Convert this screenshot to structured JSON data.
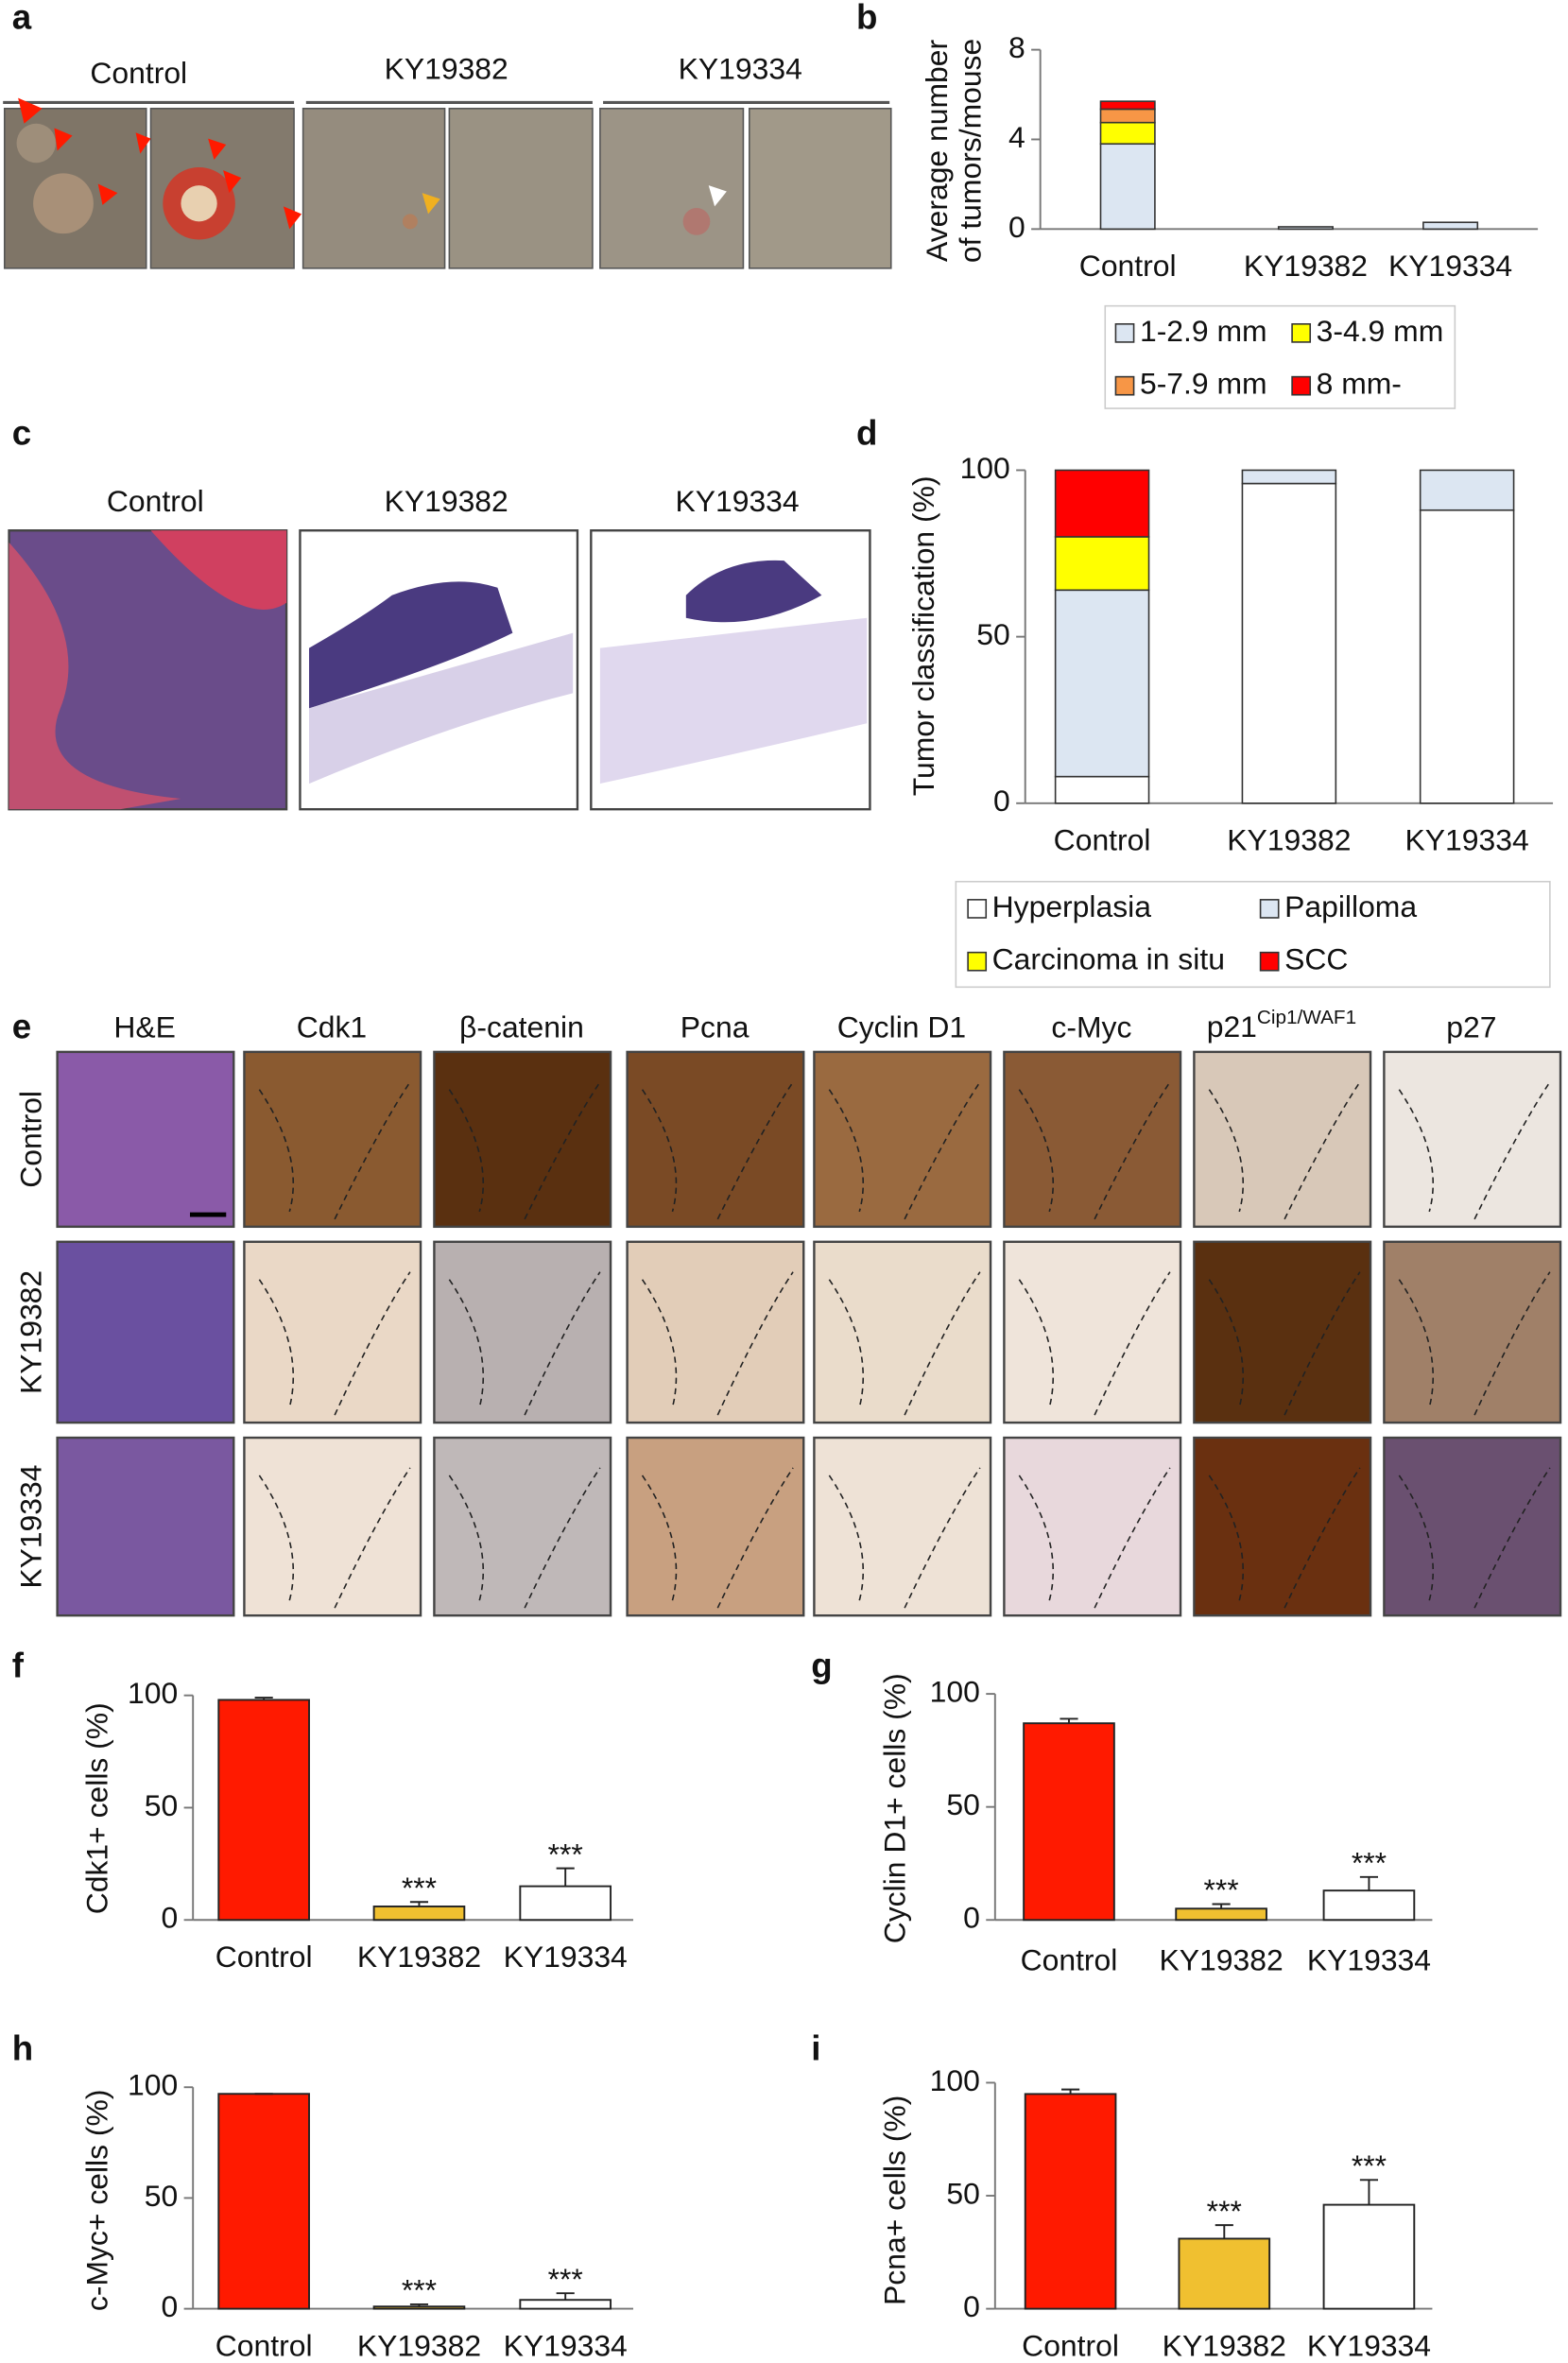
{
  "photo_panels": [
    {
      "panel": "a",
      "labels": [
        "Control",
        "KY19382",
        "KY19334"
      ]
    },
    {
      "panel": "c",
      "labels": [
        "Control",
        "KY19382",
        "KY19334"
      ]
    },
    {
      "panel": "e",
      "columns": [
        "H&E",
        "Cdk1",
        "β-catenin",
        "Pcna",
        "Cyclin D1",
        "c-Myc",
        {
          "base": "p21",
          "sup": "Cip1/WAF1"
        },
        "p27"
      ],
      "rows": [
        "Control",
        "KY19382",
        "KY19334"
      ]
    }
  ],
  "chart_data": [
    {
      "panel": "b",
      "type": "bar",
      "stacked": true,
      "ylabel": [
        "Average number",
        "of tumors/mouse"
      ],
      "categories": [
        "Control",
        "KY19382",
        "KY19334"
      ],
      "ylim": [
        0,
        8
      ],
      "yticks": [
        0,
        4,
        8
      ],
      "series": [
        {
          "name": "1-2.9 mm",
          "color": "#dce6f2",
          "values": [
            3.8,
            0.1,
            0.3
          ]
        },
        {
          "name": "3-4.9 mm",
          "color": "#ffff00",
          "values": [
            0.95,
            0,
            0
          ]
        },
        {
          "name": "5-7.9 mm",
          "color": "#f79646",
          "values": [
            0.6,
            0,
            0
          ]
        },
        {
          "name": "8 mm-",
          "color": "#ff0000",
          "values": [
            0.35,
            0,
            0
          ]
        }
      ]
    },
    {
      "panel": "d",
      "type": "bar",
      "stacked": true,
      "ylabel": "Tumor classification (%)",
      "categories": [
        "Control",
        "KY19382",
        "KY19334"
      ],
      "ylim": [
        0,
        100
      ],
      "yticks": [
        0,
        50,
        100
      ],
      "series": [
        {
          "name": "Hyperplasia",
          "color": "#ffffff",
          "values": [
            8,
            96,
            88
          ]
        },
        {
          "name": "Papilloma",
          "color": "#dce6f2",
          "values": [
            56,
            4,
            12
          ]
        },
        {
          "name": "Carcinoma in situ",
          "color": "#ffff00",
          "values": [
            16,
            0,
            0
          ]
        },
        {
          "name": "SCC",
          "color": "#ff0000",
          "values": [
            20,
            0,
            0
          ]
        }
      ]
    },
    {
      "panel": "f",
      "type": "bar",
      "ylabel": "Cdk1+ cells (%)",
      "categories": [
        "Control",
        "KY19382",
        "KY19334"
      ],
      "values": [
        98,
        6,
        15
      ],
      "errors": [
        1,
        2,
        8
      ],
      "colors": [
        "#ff1a00",
        "#f0c030",
        "#ffffff"
      ],
      "significance": [
        null,
        "***",
        "***"
      ],
      "ylim": [
        0,
        100
      ],
      "yticks": [
        0,
        50,
        100
      ]
    },
    {
      "panel": "g",
      "type": "bar",
      "ylabel": "Cyclin D1+ cells (%)",
      "categories": [
        "Control",
        "KY19382",
        "KY19334"
      ],
      "values": [
        87,
        5,
        13
      ],
      "errors": [
        2,
        2,
        6
      ],
      "colors": [
        "#ff1a00",
        "#f0c030",
        "#ffffff"
      ],
      "significance": [
        null,
        "***",
        "***"
      ],
      "ylim": [
        0,
        100
      ],
      "yticks": [
        0,
        50,
        100
      ]
    },
    {
      "panel": "h",
      "type": "bar",
      "ylabel": "c-Myc+ cells (%)",
      "categories": [
        "Control",
        "KY19382",
        "KY19334"
      ],
      "values": [
        97,
        1,
        4
      ],
      "errors": [
        0,
        1,
        3
      ],
      "colors": [
        "#ff1a00",
        "#f0c030",
        "#ffffff"
      ],
      "significance": [
        null,
        "***",
        "***"
      ],
      "ylim": [
        0,
        100
      ],
      "yticks": [
        0,
        50,
        100
      ]
    },
    {
      "panel": "i",
      "type": "bar",
      "ylabel": "Pcna+ cells (%)",
      "categories": [
        "Control",
        "KY19382",
        "KY19334"
      ],
      "values": [
        95,
        31,
        46
      ],
      "errors": [
        2,
        6,
        11
      ],
      "colors": [
        "#ff1a00",
        "#f0c030",
        "#ffffff"
      ],
      "significance": [
        null,
        "***",
        "***"
      ],
      "ylim": [
        0,
        100
      ],
      "yticks": [
        0,
        50,
        100
      ]
    }
  ]
}
